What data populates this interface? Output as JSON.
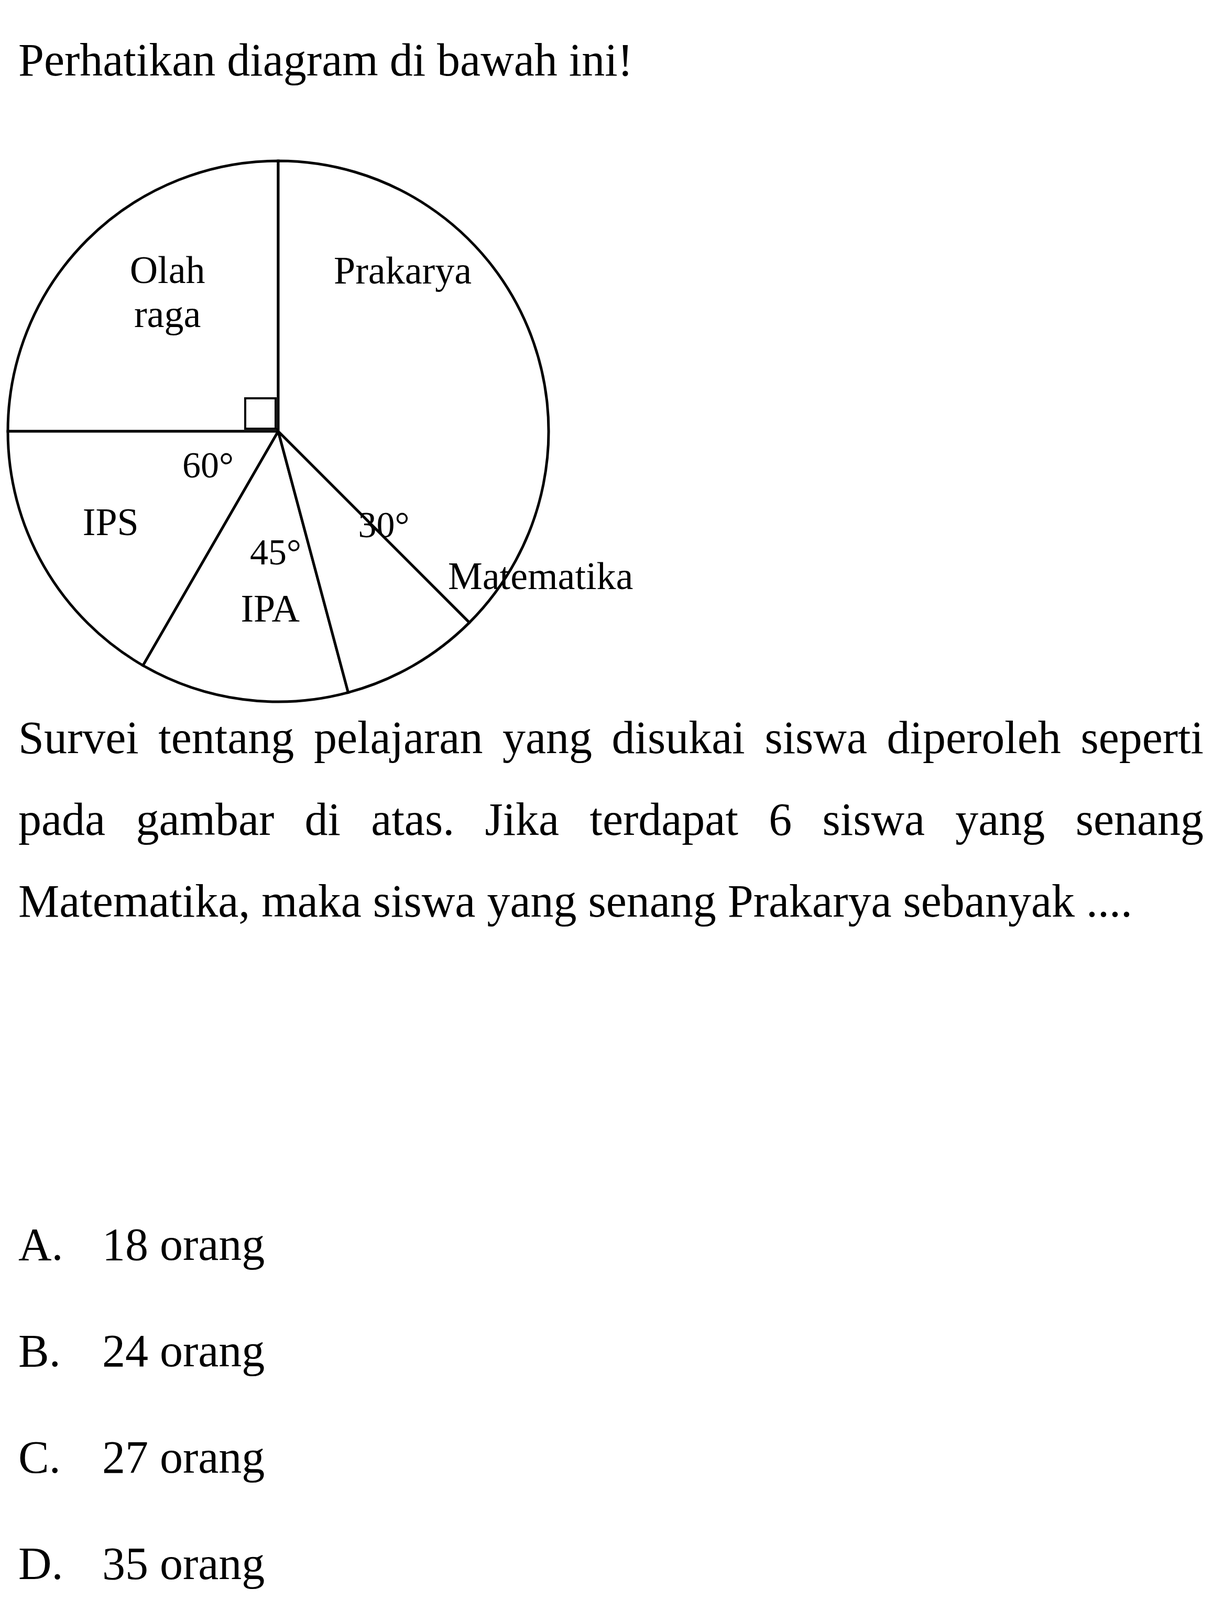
{
  "header": {
    "title": "Perhatikan diagram di bawah ini!"
  },
  "chart_data": {
    "type": "pie",
    "categories": [
      "Olah raga",
      "IPS",
      "IPA",
      "Matematika",
      "Prakarya"
    ],
    "values": [
      90,
      60,
      45,
      30,
      135
    ],
    "value_labels": [
      null,
      "60°",
      "45°",
      "30°",
      null
    ],
    "color": "#ffffff"
  },
  "question": {
    "text": "Survei tentang pelajaran yang disukai siswa diperoleh seperti pada gambar di atas. Jika terdapat 6 siswa yang senang Matematika, maka siswa yang senang Prakarya sebanyak ....",
    "options": [
      {
        "letter": "A.",
        "text": "18 orang"
      },
      {
        "letter": "B.",
        "text": "24 orang"
      },
      {
        "letter": "C.",
        "text": "27 orang"
      },
      {
        "letter": "D.",
        "text": "35 orang"
      }
    ]
  }
}
